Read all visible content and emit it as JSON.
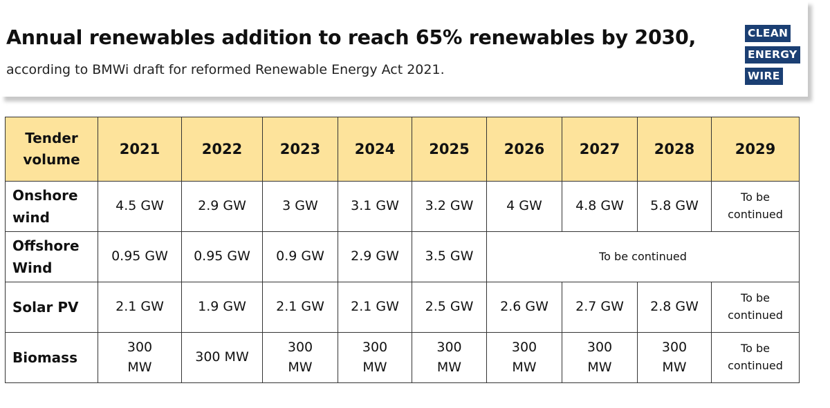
{
  "header": {
    "title": "Annual renewables addition to reach 65% renewables by 2030,",
    "subtitle": "according to BMWi draft for reformed Renewable Energy Act 2021."
  },
  "logo": {
    "words": [
      "CLEAN",
      "ENERGY",
      "WIRE"
    ],
    "color": "#1b3f73"
  },
  "colors": {
    "header_fill": "#fde39b",
    "border": "#333333"
  },
  "chart_data": {
    "type": "table",
    "title": "Annual renewables addition to reach 65% renewables by 2030,",
    "subtitle": "according to BMWi draft for reformed Renewable Energy Act 2021.",
    "corner_label": "Tender volume",
    "columns": [
      "2021",
      "2022",
      "2023",
      "2024",
      "2025",
      "2026",
      "2027",
      "2028",
      "2029"
    ],
    "rows": [
      {
        "label": "Onshore wind",
        "cells": [
          "4.5 GW",
          "2.9 GW",
          "3 GW",
          "3.1 GW",
          "3.2 GW",
          "4 GW",
          "4.8 GW",
          "5.8 GW",
          "To be continued"
        ]
      },
      {
        "label": "Offshore Wind",
        "cells": [
          "0.95 GW",
          "0.95 GW",
          "0.9 GW",
          "2.9 GW",
          "3.5 GW"
        ],
        "merged_note": "To be continued"
      },
      {
        "label": "Solar PV",
        "cells": [
          "2.1 GW",
          "1.9 GW",
          "2.1 GW",
          "2.1 GW",
          "2.5 GW",
          "2.6 GW",
          "2.7 GW",
          "2.8 GW",
          "To be continued"
        ]
      },
      {
        "label": "Biomass",
        "cells": [
          "300 MW",
          "300 MW",
          "300 MW",
          "300 MW",
          "300 MW",
          "300 MW",
          "300 MW",
          "300 MW",
          "To be continued"
        ]
      }
    ]
  }
}
